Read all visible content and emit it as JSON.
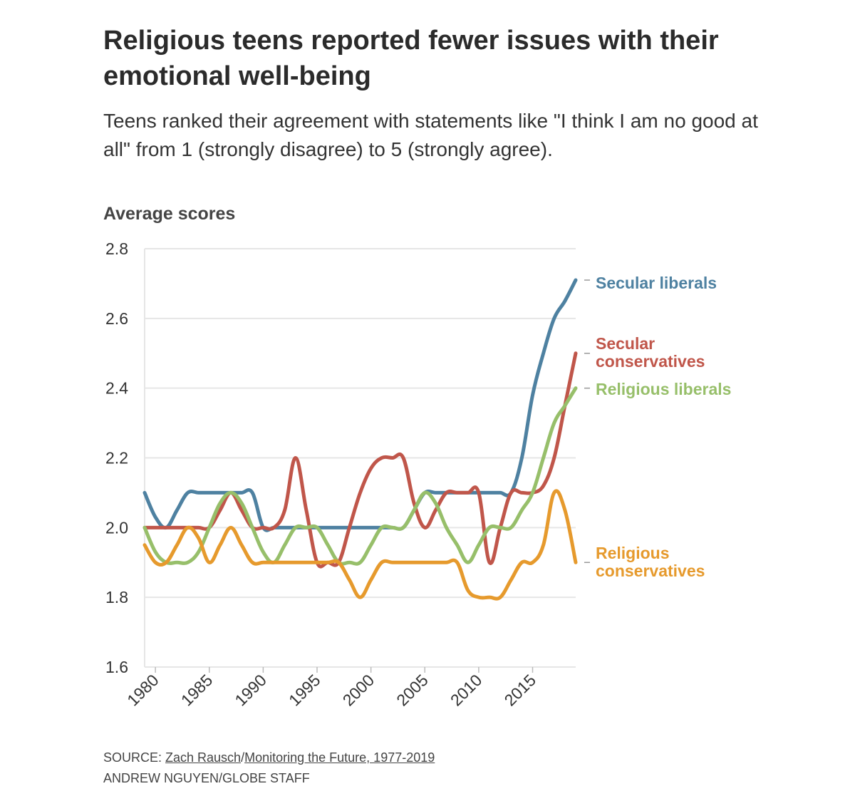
{
  "title": "Religious teens reported fewer issues with their emotional well-being",
  "subtitle": "Teens ranked their agreement with statements like \"I think I am no good at all\" from 1 (strongly disagree) to 5 (strongly agree).",
  "footer": {
    "source_prefix": "SOURCE: ",
    "source_link1": "Zach Rausch",
    "source_sep": "/",
    "source_link2": "Monitoring the Future, 1977-2019",
    "credit": "ANDREW NGUYEN/GLOBE STAFF"
  },
  "chart_data": {
    "type": "line",
    "ylabel": "Average scores",
    "xlabel": "",
    "xlim": [
      1979,
      2019
    ],
    "ylim": [
      1.6,
      2.8
    ],
    "y_ticks": [
      1.6,
      1.8,
      2.0,
      2.2,
      2.4,
      2.6,
      2.8
    ],
    "y_tick_labels": [
      "1.6",
      "1.8",
      "2.0",
      "2.2",
      "2.4",
      "2.6",
      "2.8"
    ],
    "x_ticks": [
      1980,
      1985,
      1990,
      1995,
      2000,
      2005,
      2010,
      2015
    ],
    "x_tick_labels": [
      "1980",
      "1985",
      "1990",
      "1995",
      "2000",
      "2005",
      "2010",
      "2015"
    ],
    "grid": "horizontal",
    "x": [
      1979,
      1980,
      1981,
      1982,
      1983,
      1984,
      1985,
      1986,
      1987,
      1988,
      1989,
      1990,
      1991,
      1992,
      1993,
      1994,
      1995,
      1996,
      1997,
      1998,
      1999,
      2000,
      2001,
      2002,
      2003,
      2004,
      2005,
      2006,
      2007,
      2008,
      2009,
      2010,
      2011,
      2012,
      2013,
      2014,
      2015,
      2016,
      2017,
      2018,
      2019
    ],
    "series": [
      {
        "name": "Secular liberals",
        "label_lines": [
          "Secular liberals"
        ],
        "color": "#4e81a1",
        "values": [
          2.1,
          2.03,
          2.0,
          2.05,
          2.1,
          2.1,
          2.1,
          2.1,
          2.1,
          2.1,
          2.1,
          2.0,
          2.0,
          2.0,
          2.0,
          2.0,
          2.0,
          2.0,
          2.0,
          2.0,
          2.0,
          2.0,
          2.0,
          2.0,
          2.0,
          2.05,
          2.1,
          2.1,
          2.1,
          2.1,
          2.1,
          2.1,
          2.1,
          2.1,
          2.1,
          2.2,
          2.38,
          2.5,
          2.6,
          2.65,
          2.71
        ]
      },
      {
        "name": "Secular conservatives",
        "label_lines": [
          "Secular",
          "conservatives"
        ],
        "color": "#c0564a",
        "values": [
          2.0,
          2.0,
          2.0,
          2.0,
          2.0,
          2.0,
          2.0,
          2.05,
          2.1,
          2.05,
          2.0,
          2.0,
          2.0,
          2.05,
          2.2,
          2.05,
          1.9,
          1.9,
          1.9,
          2.0,
          2.1,
          2.17,
          2.2,
          2.2,
          2.2,
          2.07,
          2.0,
          2.05,
          2.1,
          2.1,
          2.1,
          2.1,
          1.9,
          2.0,
          2.1,
          2.1,
          2.1,
          2.12,
          2.2,
          2.35,
          2.5
        ]
      },
      {
        "name": "Religious liberals",
        "label_lines": [
          "Religious liberals"
        ],
        "color": "#97bf6a",
        "values": [
          2.0,
          1.93,
          1.9,
          1.9,
          1.9,
          1.93,
          2.0,
          2.07,
          2.1,
          2.07,
          2.0,
          1.93,
          1.9,
          1.95,
          2.0,
          2.0,
          2.0,
          1.95,
          1.9,
          1.9,
          1.9,
          1.95,
          2.0,
          2.0,
          2.0,
          2.05,
          2.1,
          2.07,
          2.0,
          1.95,
          1.9,
          1.95,
          2.0,
          2.0,
          2.0,
          2.05,
          2.1,
          2.2,
          2.3,
          2.35,
          2.4
        ]
      },
      {
        "name": "Religious conservatives",
        "label_lines": [
          "Religious",
          "conservatives"
        ],
        "color": "#e69a2d",
        "values": [
          1.95,
          1.9,
          1.9,
          1.95,
          2.0,
          1.97,
          1.9,
          1.95,
          2.0,
          1.95,
          1.9,
          1.9,
          1.9,
          1.9,
          1.9,
          1.9,
          1.9,
          1.9,
          1.9,
          1.85,
          1.8,
          1.85,
          1.9,
          1.9,
          1.9,
          1.9,
          1.9,
          1.9,
          1.9,
          1.9,
          1.82,
          1.8,
          1.8,
          1.8,
          1.85,
          1.9,
          1.9,
          1.95,
          2.1,
          2.05,
          1.9
        ]
      }
    ]
  }
}
